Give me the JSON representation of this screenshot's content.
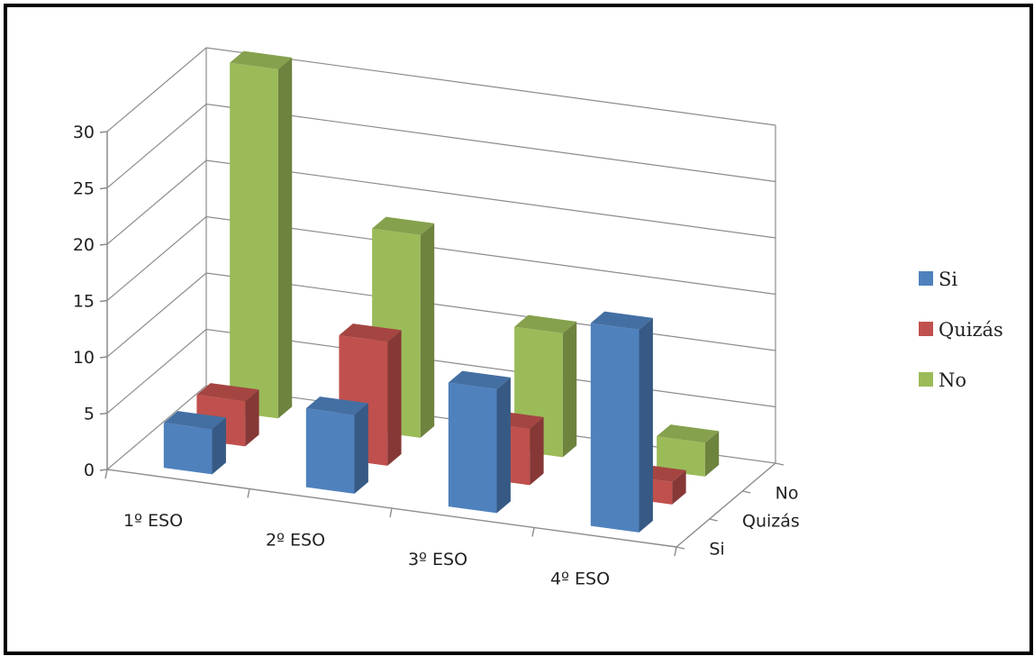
{
  "chart_data": {
    "type": "bar",
    "subtype": "3d-column",
    "categories": [
      "1º ESO",
      "2º ESO",
      "3º ESO",
      "4º ESO"
    ],
    "series": [
      {
        "name": "Si",
        "values": [
          4,
          7,
          11,
          18
        ],
        "color": "#4f81bd"
      },
      {
        "name": "Quizás",
        "values": [
          4,
          11,
          5,
          2
        ],
        "color": "#c0504d"
      },
      {
        "name": "No",
        "values": [
          31,
          18,
          11,
          3
        ],
        "color": "#9bbb59"
      }
    ],
    "depth_labels": [
      "Si",
      "Quizás",
      "No"
    ],
    "ylim": [
      0,
      30
    ],
    "yticks": [
      0,
      5,
      10,
      15,
      20,
      25,
      30
    ],
    "grid": true,
    "legend": "right",
    "title": "",
    "xlabel": "",
    "ylabel": ""
  }
}
